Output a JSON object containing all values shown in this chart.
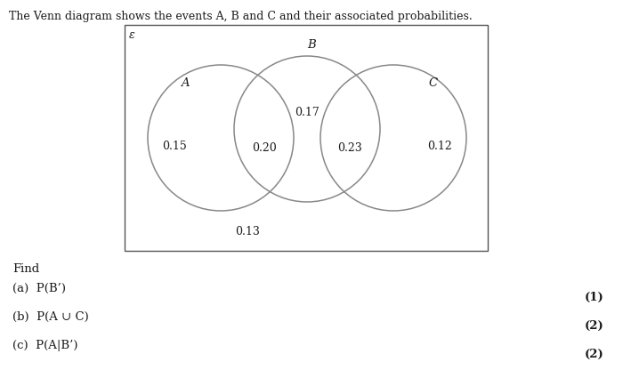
{
  "title_line": "The Venn diagram shows the events A, B and C and their associated probabilities.",
  "epsilon_label": "ε",
  "label_A": "A",
  "label_B": "B",
  "label_C": "C",
  "val_A_only": "0.15",
  "val_AB": "0.20",
  "val_B_only": "0.17",
  "val_BC": "0.23",
  "val_C_only": "0.12",
  "val_below": "0.13",
  "find_text": "Find",
  "part_a": "(a)  P(B’)",
  "part_b": "(b)  P(A ∪ C)",
  "part_c": "(c)  P(A|B’)",
  "marks_a": "(1)",
  "marks_b": "(2)",
  "marks_c": "(2)",
  "bg_color": "#ffffff",
  "circle_color": "#888888",
  "text_color": "#1a1a1a",
  "box_color": "#555555"
}
